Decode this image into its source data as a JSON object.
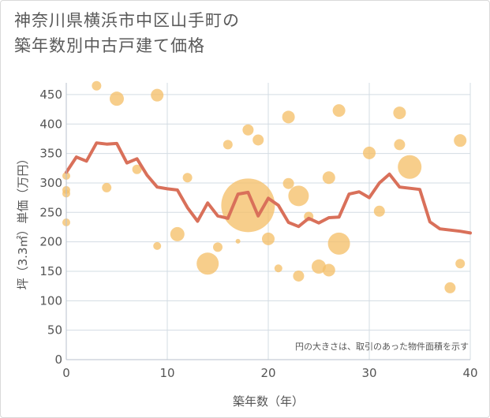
{
  "title_line1": "神奈川県横浜市中区山手町の",
  "title_line2": "築年数別中古戸建て価格",
  "chart_data": {
    "type": "scatter",
    "title": "神奈川県横浜市中区山手町の築年数別中古戸建て価格",
    "xlabel": "築年数（年）",
    "ylabel": "坪（3.3㎡）単価（万円）",
    "xlim": [
      0,
      40
    ],
    "ylim": [
      0,
      470
    ],
    "xticks": [
      0,
      10,
      20,
      30,
      40
    ],
    "yticks": [
      0,
      50,
      100,
      150,
      200,
      250,
      300,
      350,
      400,
      450
    ],
    "grid": true,
    "note": "円の大きさは、取引のあった物件面積を示す",
    "bubble_color": "#f5c06a",
    "line_color": "#d9705a",
    "bubbles": [
      {
        "x": 0,
        "y": 312,
        "s": 5
      },
      {
        "x": 0,
        "y": 288,
        "s": 5
      },
      {
        "x": 0,
        "y": 282,
        "s": 5
      },
      {
        "x": 0,
        "y": 233,
        "s": 5
      },
      {
        "x": 3,
        "y": 465,
        "s": 6
      },
      {
        "x": 4,
        "y": 292,
        "s": 6
      },
      {
        "x": 5,
        "y": 443,
        "s": 9
      },
      {
        "x": 7,
        "y": 323,
        "s": 6
      },
      {
        "x": 9,
        "y": 449,
        "s": 8
      },
      {
        "x": 9,
        "y": 193,
        "s": 5
      },
      {
        "x": 11,
        "y": 213,
        "s": 9
      },
      {
        "x": 12,
        "y": 309,
        "s": 6
      },
      {
        "x": 14,
        "y": 163,
        "s": 14
      },
      {
        "x": 15,
        "y": 191,
        "s": 6
      },
      {
        "x": 16,
        "y": 365,
        "s": 6
      },
      {
        "x": 17,
        "y": 201,
        "s": 3
      },
      {
        "x": 18,
        "y": 262,
        "s": 34
      },
      {
        "x": 18,
        "y": 390,
        "s": 7
      },
      {
        "x": 19,
        "y": 373,
        "s": 7
      },
      {
        "x": 20,
        "y": 205,
        "s": 8
      },
      {
        "x": 21,
        "y": 155,
        "s": 5
      },
      {
        "x": 22,
        "y": 412,
        "s": 8
      },
      {
        "x": 22,
        "y": 299,
        "s": 7
      },
      {
        "x": 23,
        "y": 278,
        "s": 13
      },
      {
        "x": 23,
        "y": 142,
        "s": 7
      },
      {
        "x": 24,
        "y": 243,
        "s": 6
      },
      {
        "x": 25,
        "y": 158,
        "s": 9
      },
      {
        "x": 26,
        "y": 309,
        "s": 8
      },
      {
        "x": 26,
        "y": 152,
        "s": 8
      },
      {
        "x": 27,
        "y": 423,
        "s": 8
      },
      {
        "x": 27,
        "y": 197,
        "s": 14
      },
      {
        "x": 30,
        "y": 351,
        "s": 8
      },
      {
        "x": 31,
        "y": 252,
        "s": 7
      },
      {
        "x": 33,
        "y": 419,
        "s": 8
      },
      {
        "x": 33,
        "y": 365,
        "s": 7
      },
      {
        "x": 34,
        "y": 327,
        "s": 15
      },
      {
        "x": 38,
        "y": 122,
        "s": 7
      },
      {
        "x": 39,
        "y": 372,
        "s": 8
      },
      {
        "x": 39,
        "y": 163,
        "s": 6
      }
    ],
    "line": {
      "x": [
        0,
        1,
        2,
        3,
        4,
        5,
        6,
        7,
        8,
        9,
        10,
        11,
        12,
        13,
        14,
        15,
        16,
        17,
        18,
        19,
        20,
        21,
        22,
        23,
        24,
        25,
        26,
        27,
        28,
        29,
        30,
        31,
        32,
        33,
        34,
        35,
        36,
        37,
        38,
        39,
        40
      ],
      "y": [
        318,
        344,
        337,
        368,
        366,
        367,
        334,
        341,
        313,
        293,
        290,
        288,
        258,
        235,
        266,
        244,
        240,
        281,
        284,
        244,
        274,
        262,
        233,
        226,
        240,
        232,
        241,
        242,
        281,
        285,
        275,
        300,
        315,
        293,
        291,
        289,
        234,
        222,
        220,
        218,
        215
      ]
    }
  }
}
